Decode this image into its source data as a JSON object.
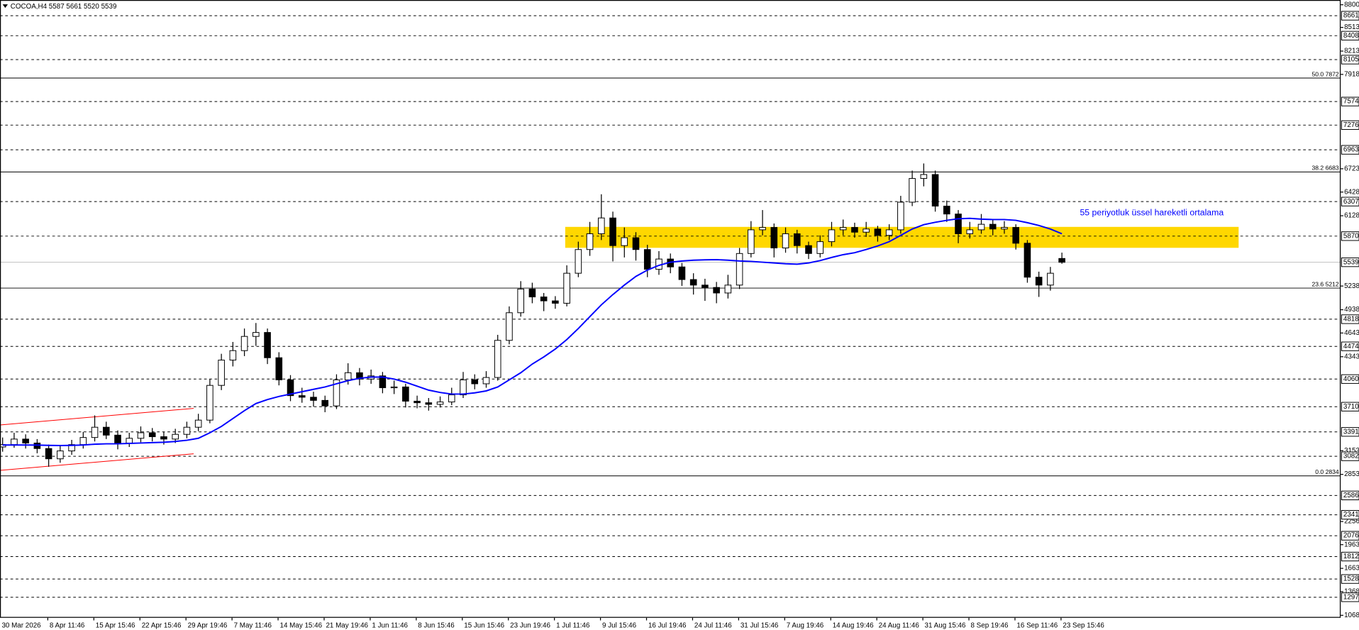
{
  "chart_data": {
    "type": "candlestick",
    "header": "COCOA,H4 5587 5661 5520 5539",
    "x_labels": [
      "30 Mar 2026",
      "8 Apr 11:46",
      "15 Apr 15:46",
      "22 Apr 15:46",
      "29 Apr 19:46",
      "7 May 11:46",
      "14 May 15:46",
      "21 May 19:46",
      "1 Jun 11:46",
      "8 Jun 15:46",
      "15 Jun 15:46",
      "23 Jun 19:46",
      "1 Jul 11:46",
      "9 Jul 15:46",
      "16 Jul 19:46",
      "24 Jul 11:46",
      "31 Jul 15:46",
      "7 Aug 19:46",
      "14 Aug 19:46",
      "24 Aug 11:46",
      "31 Aug 15:46",
      "8 Sep 19:46",
      "16 Sep 11:46",
      "23 Sep 15:46"
    ],
    "ylim": [
      1037,
      8860
    ],
    "yticks": [
      8800,
      8513,
      8213,
      7918,
      6723,
      6428,
      6128,
      5238,
      4938,
      4643,
      4343,
      3153,
      2853,
      2256,
      1963,
      1663,
      1368,
      1068
    ],
    "levels": [
      8661,
      8408,
      8105,
      7574,
      7276,
      6963,
      6307,
      5870,
      4818,
      4474,
      4060,
      3710,
      3391,
      3082,
      2586,
      2341,
      2076,
      1812,
      1528,
      1297
    ],
    "current_price": 5539,
    "fib_levels": [
      {
        "value": 7872,
        "label": "50.0 7872"
      },
      {
        "value": 6683,
        "label": "38.2 6683"
      },
      {
        "value": 5212,
        "label": "23.6 5212"
      },
      {
        "value": 2834,
        "label": "0.0 2834"
      }
    ],
    "bull_color": "#ffffff",
    "bear_color": "#000000",
    "ohlc": [
      [
        3200,
        3320,
        3140,
        3230
      ],
      [
        3230,
        3380,
        3190,
        3300
      ],
      [
        3300,
        3360,
        3180,
        3250
      ],
      [
        3250,
        3300,
        3120,
        3180
      ],
      [
        3180,
        3230,
        2950,
        3050
      ],
      [
        3050,
        3210,
        3000,
        3150
      ],
      [
        3150,
        3290,
        3100,
        3230
      ],
      [
        3230,
        3390,
        3180,
        3320
      ],
      [
        3320,
        3600,
        3270,
        3450
      ],
      [
        3450,
        3520,
        3300,
        3350
      ],
      [
        3350,
        3410,
        3170,
        3250
      ],
      [
        3250,
        3380,
        3200,
        3310
      ],
      [
        3310,
        3460,
        3260,
        3380
      ],
      [
        3380,
        3440,
        3270,
        3330
      ],
      [
        3330,
        3390,
        3230,
        3300
      ],
      [
        3300,
        3430,
        3250,
        3360
      ],
      [
        3360,
        3520,
        3310,
        3450
      ],
      [
        3450,
        3620,
        3400,
        3540
      ],
      [
        3540,
        4060,
        3500,
        3980
      ],
      [
        3980,
        4380,
        3920,
        4300
      ],
      [
        4300,
        4530,
        4220,
        4420
      ],
      [
        4420,
        4700,
        4350,
        4600
      ],
      [
        4600,
        4770,
        4480,
        4650
      ],
      [
        4650,
        4700,
        4250,
        4330
      ],
      [
        4330,
        4400,
        3980,
        4050
      ],
      [
        4050,
        4110,
        3780,
        3850
      ],
      [
        3850,
        3950,
        3760,
        3830
      ],
      [
        3830,
        3900,
        3710,
        3790
      ],
      [
        3790,
        3850,
        3640,
        3720
      ],
      [
        3720,
        4120,
        3680,
        4050
      ],
      [
        4050,
        4260,
        3990,
        4140
      ],
      [
        4140,
        4200,
        3980,
        4060
      ],
      [
        4060,
        4180,
        4000,
        4100
      ],
      [
        4100,
        4150,
        3880,
        3950
      ],
      [
        3950,
        4040,
        3870,
        3960
      ],
      [
        3960,
        4000,
        3700,
        3780
      ],
      [
        3780,
        3850,
        3690,
        3760
      ],
      [
        3760,
        3820,
        3660,
        3740
      ],
      [
        3740,
        3840,
        3700,
        3770
      ],
      [
        3770,
        3950,
        3730,
        3860
      ],
      [
        3860,
        4150,
        3820,
        4050
      ],
      [
        4050,
        4120,
        3930,
        4000
      ],
      [
        4000,
        4160,
        3950,
        4080
      ],
      [
        4080,
        4620,
        4040,
        4550
      ],
      [
        4550,
        4980,
        4500,
        4900
      ],
      [
        4900,
        5300,
        4850,
        5200
      ],
      [
        5200,
        5280,
        5020,
        5100
      ],
      [
        5100,
        5150,
        4920,
        5050
      ],
      [
        5050,
        5110,
        4950,
        5020
      ],
      [
        5020,
        5500,
        4980,
        5400
      ],
      [
        5400,
        5800,
        5350,
        5700
      ],
      [
        5700,
        6050,
        5620,
        5900
      ],
      [
        5900,
        6400,
        5820,
        6100
      ],
      [
        6100,
        6180,
        5550,
        5750
      ],
      [
        5750,
        5980,
        5600,
        5850
      ],
      [
        5850,
        5920,
        5560,
        5700
      ],
      [
        5700,
        5760,
        5350,
        5450
      ],
      [
        5450,
        5680,
        5380,
        5580
      ],
      [
        5580,
        5650,
        5400,
        5480
      ],
      [
        5480,
        5530,
        5240,
        5320
      ],
      [
        5320,
        5400,
        5130,
        5250
      ],
      [
        5250,
        5330,
        5050,
        5220
      ],
      [
        5220,
        5290,
        5020,
        5150
      ],
      [
        5150,
        5380,
        5080,
        5250
      ],
      [
        5250,
        5720,
        5200,
        5650
      ],
      [
        5650,
        6060,
        5600,
        5950
      ],
      [
        5950,
        6200,
        5880,
        5980
      ],
      [
        5980,
        6030,
        5600,
        5720
      ],
      [
        5720,
        5980,
        5660,
        5900
      ],
      [
        5900,
        5950,
        5650,
        5750
      ],
      [
        5750,
        5800,
        5580,
        5650
      ],
      [
        5650,
        5880,
        5600,
        5800
      ],
      [
        5800,
        6050,
        5740,
        5950
      ],
      [
        5950,
        6080,
        5880,
        5980
      ],
      [
        5980,
        6040,
        5850,
        5920
      ],
      [
        5920,
        6050,
        5860,
        5960
      ],
      [
        5960,
        6000,
        5800,
        5880
      ],
      [
        5880,
        6020,
        5820,
        5950
      ],
      [
        5950,
        6380,
        5900,
        6300
      ],
      [
        6300,
        6700,
        6250,
        6600
      ],
      [
        6600,
        6790,
        6500,
        6650
      ],
      [
        6650,
        6700,
        6180,
        6250
      ],
      [
        6250,
        6320,
        6050,
        6150
      ],
      [
        6150,
        6200,
        5780,
        5900
      ],
      [
        5900,
        6050,
        5840,
        5950
      ],
      [
        5950,
        6150,
        5900,
        6020
      ],
      [
        6020,
        6080,
        5880,
        5960
      ],
      [
        5960,
        6060,
        5900,
        5980
      ],
      [
        5980,
        6020,
        5700,
        5780
      ],
      [
        5780,
        5820,
        5280,
        5350
      ],
      [
        5350,
        5420,
        5100,
        5250
      ],
      [
        5250,
        5480,
        5180,
        5400
      ],
      [
        5587,
        5661,
        5520,
        5539
      ]
    ],
    "ema": {
      "color": "#0000ff",
      "values": [
        3225,
        3225,
        3225,
        3224,
        3220,
        3218,
        3220,
        3225,
        3235,
        3240,
        3240,
        3245,
        3250,
        3255,
        3260,
        3270,
        3285,
        3310,
        3380,
        3460,
        3560,
        3660,
        3750,
        3800,
        3840,
        3870,
        3900,
        3930,
        3960,
        4000,
        4040,
        4070,
        4085,
        4085,
        4060,
        4020,
        3970,
        3920,
        3890,
        3870,
        3870,
        3885,
        3910,
        3960,
        4050,
        4140,
        4250,
        4340,
        4440,
        4560,
        4700,
        4850,
        5000,
        5130,
        5250,
        5360,
        5440,
        5500,
        5540,
        5555,
        5565,
        5570,
        5572,
        5565,
        5555,
        5550,
        5540,
        5530,
        5520,
        5515,
        5530,
        5560,
        5600,
        5635,
        5660,
        5700,
        5745,
        5800,
        5880,
        5960,
        6015,
        6045,
        6070,
        6090,
        6095,
        6085,
        6080,
        6080,
        6070,
        6040,
        6005,
        5960,
        5900
      ]
    },
    "annotation": "55 periyotluk üssel hareketli ortalama",
    "zone": {
      "color": "#ffd700",
      "range": [
        5722,
        5987
      ]
    },
    "channel": {
      "color": "#ff0000",
      "upper": [
        3479,
        3689
      ],
      "lower": [
        2904,
        3114
      ]
    }
  }
}
